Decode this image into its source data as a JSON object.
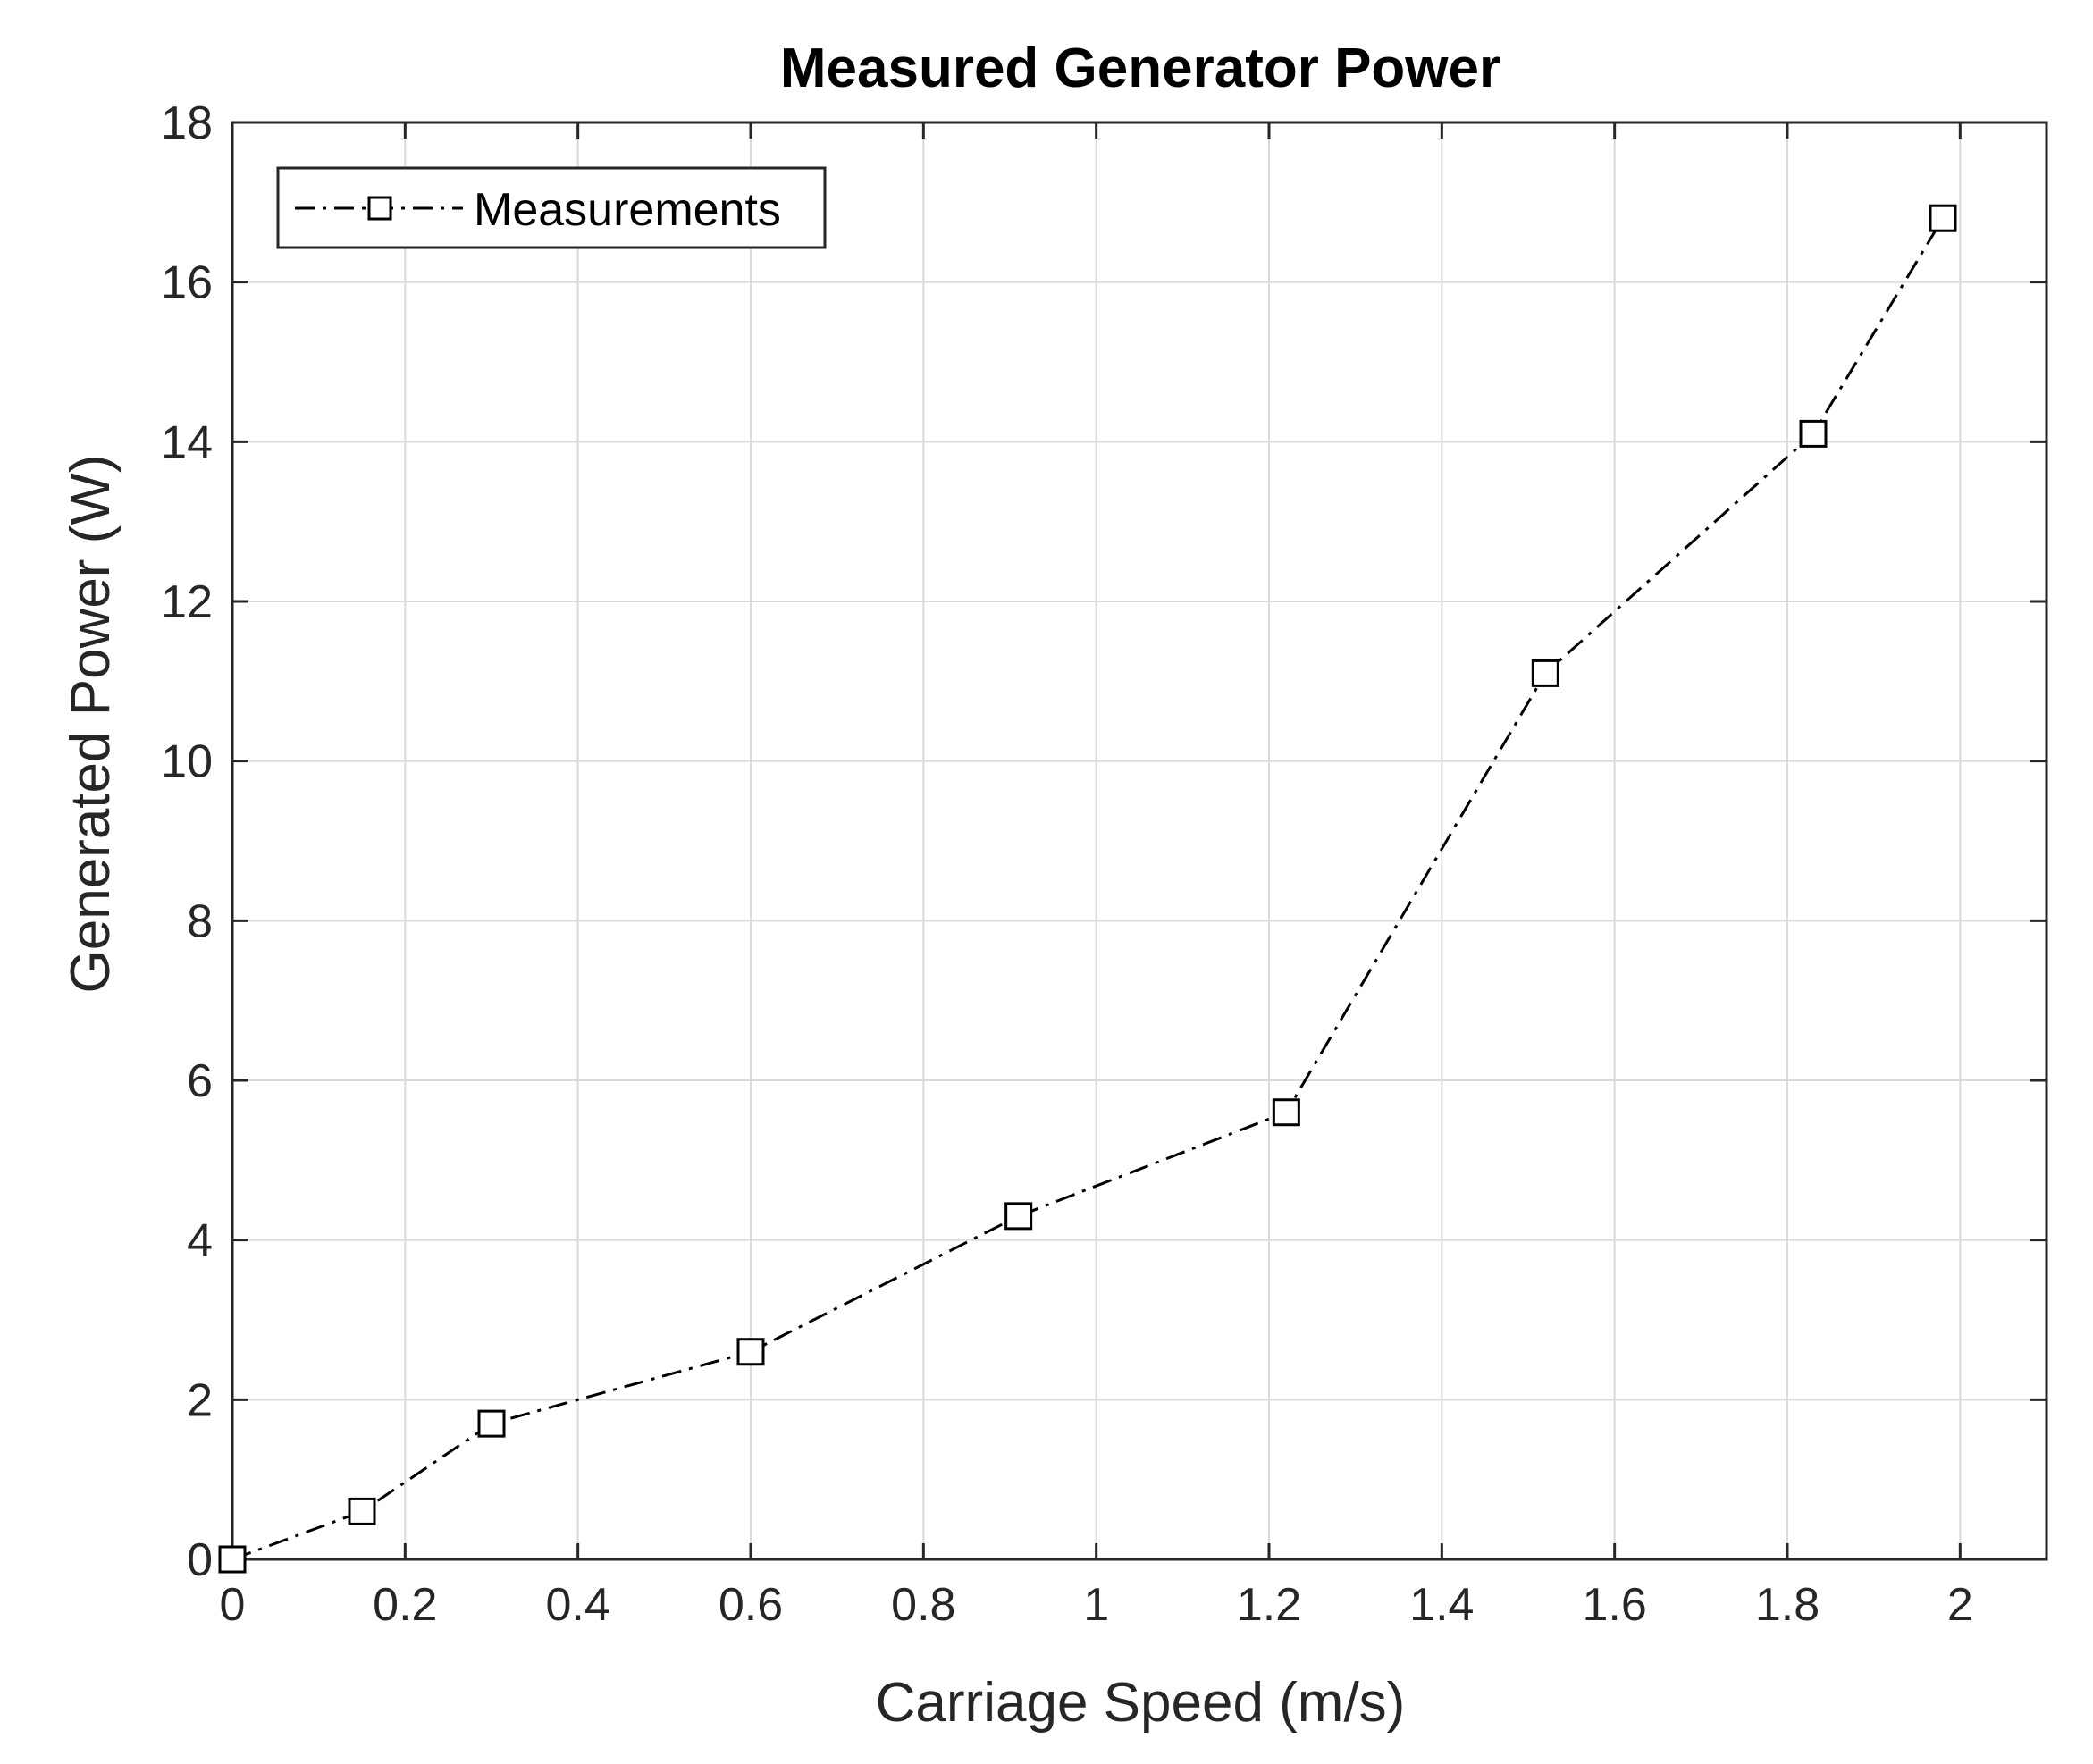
{
  "chart_data": {
    "type": "line",
    "title": "Measured Generator Power",
    "xlabel": "Carriage Speed (m/s)",
    "ylabel": "Generated Power (W)",
    "xlim": [
      0,
      2.1
    ],
    "ylim": [
      0,
      18
    ],
    "xticks": [
      0,
      0.2,
      0.4,
      0.6,
      0.8,
      1,
      1.2,
      1.4,
      1.6,
      1.8,
      2
    ],
    "xtick_labels": [
      "0",
      "0.2",
      "0.4",
      "0.6",
      "0.8",
      "1",
      "1.2",
      "1.4",
      "1.6",
      "1.8",
      "2"
    ],
    "yticks": [
      0,
      2,
      4,
      6,
      8,
      10,
      12,
      14,
      16,
      18
    ],
    "ytick_labels": [
      "0",
      "2",
      "4",
      "6",
      "8",
      "10",
      "12",
      "14",
      "16",
      "18"
    ],
    "grid": true,
    "legend_position": "top-left",
    "series": [
      {
        "name": "Measurements",
        "line_style": "dash-dot",
        "marker": "square",
        "color": "#000000",
        "x": [
          0,
          0.15,
          0.3,
          0.6,
          0.91,
          1.22,
          1.52,
          1.83,
          1.98
        ],
        "y": [
          0,
          0.6,
          1.7,
          2.6,
          4.3,
          5.6,
          11.1,
          14.1,
          16.8
        ]
      }
    ]
  }
}
